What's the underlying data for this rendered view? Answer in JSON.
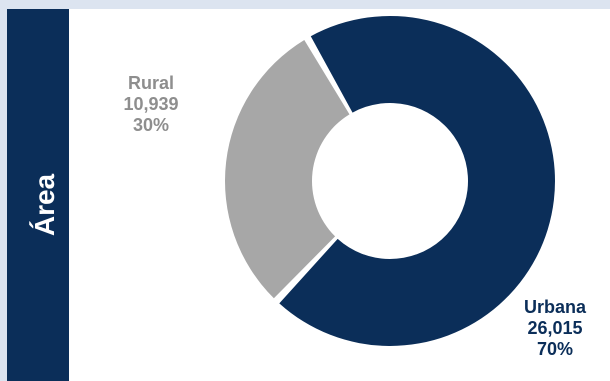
{
  "panel": {
    "side_title": "Área"
  },
  "chart_data": {
    "type": "pie",
    "variant": "donut",
    "slices": [
      {
        "label": "Urbana",
        "value": 26015,
        "value_text": "26,015",
        "percent_text": "70%",
        "color": "#0b2e59",
        "label_color": "#0b2e59"
      },
      {
        "label": "Rural",
        "value": 10939,
        "value_text": "10,939",
        "percent_text": "30%",
        "color": "#a7a7a7",
        "label_color": "#8e8e8e"
      }
    ]
  }
}
